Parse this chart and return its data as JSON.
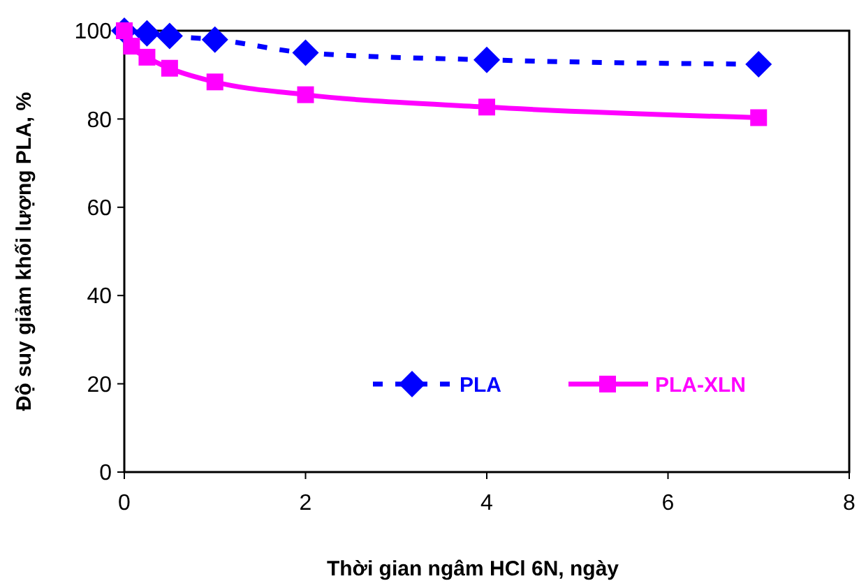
{
  "chart_data": {
    "type": "line",
    "xlabel": "Thời gian ngâm HCl 6N, ngày",
    "ylabel": "Độ suy giảm khối lượng PLA, %",
    "xlim": [
      0,
      8
    ],
    "xticks": [
      0,
      2,
      4,
      6,
      8
    ],
    "ylim": [
      0,
      100
    ],
    "yticks": [
      0,
      20,
      40,
      60,
      80,
      100
    ],
    "grid": false,
    "legend": "bottom",
    "series": [
      {
        "name": "PLA",
        "color": "#0000ff",
        "marker": "diamond",
        "line_style": "dotted",
        "x": [
          0,
          0.25,
          0.5,
          1,
          2,
          4,
          7
        ],
        "values": [
          100,
          99.4,
          98.8,
          98,
          95,
          93.4,
          92.4
        ]
      },
      {
        "name": "PLA-XLN",
        "color": "#ff00ff",
        "marker": "square",
        "line_style": "solid",
        "x": [
          0,
          0.08,
          0.25,
          0.5,
          1,
          2,
          4,
          7
        ],
        "values": [
          100,
          96.5,
          94,
          91.5,
          88.4,
          85.5,
          82.7,
          80.3
        ]
      }
    ]
  }
}
